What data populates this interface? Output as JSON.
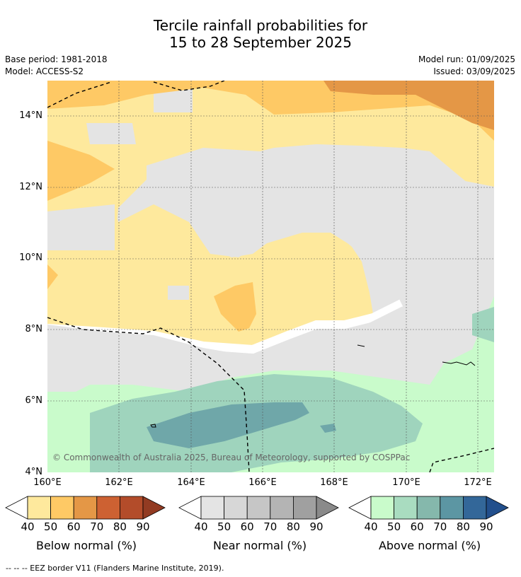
{
  "title": {
    "line1": "Tercile rainfall probabilities for",
    "line2": "15 to 28 September 2025"
  },
  "meta": {
    "base_period": "Base period: 1981-2018",
    "model": "Model: ACCESS-S2",
    "model_run": "Model run: 01/09/2025",
    "issued": "Issued: 03/09/2025"
  },
  "map": {
    "lat_labels": [
      "14°N",
      "12°N",
      "10°N",
      "8°N",
      "6°N",
      "4°N"
    ],
    "lon_labels": [
      "160°E",
      "162°E",
      "164°E",
      "166°E",
      "168°E",
      "170°E",
      "172°E"
    ],
    "copyright": "© Commonwealth of Australia 2025, Bureau of Meteorology, supported by COSPPac",
    "colors": {
      "below_40": "#fee99d",
      "below_50": "#fec965",
      "below_60": "#e49746",
      "near_40": "#e4e4e4",
      "above_40": "#c9fbcb",
      "above_50": "#9fd4bd",
      "above_60": "#6fa7a9"
    }
  },
  "legends": [
    {
      "label": "Below normal (%)",
      "ticks": [
        "40",
        "50",
        "60",
        "70",
        "80",
        "90"
      ],
      "colors": [
        "#fee99d",
        "#fec965",
        "#e49746",
        "#cd6132",
        "#b34c2a",
        "#923b22"
      ]
    },
    {
      "label": "Near normal (%)",
      "ticks": [
        "40",
        "50",
        "60",
        "70",
        "80",
        "90"
      ],
      "colors": [
        "#e4e4e4",
        "#d7d7d7",
        "#c6c6c6",
        "#b4b4b4",
        "#a0a0a0",
        "#8a8a8a"
      ]
    },
    {
      "label": "Above normal (%)",
      "ticks": [
        "40",
        "50",
        "60",
        "70",
        "80",
        "90"
      ],
      "colors": [
        "#c9fbcb",
        "#a9dcc0",
        "#85b8ac",
        "#5c96a3",
        "#336799",
        "#224f8c"
      ]
    }
  ],
  "footnote": "--  --  -- EEZ border V11 (Flanders Marine Institute, 2019)."
}
